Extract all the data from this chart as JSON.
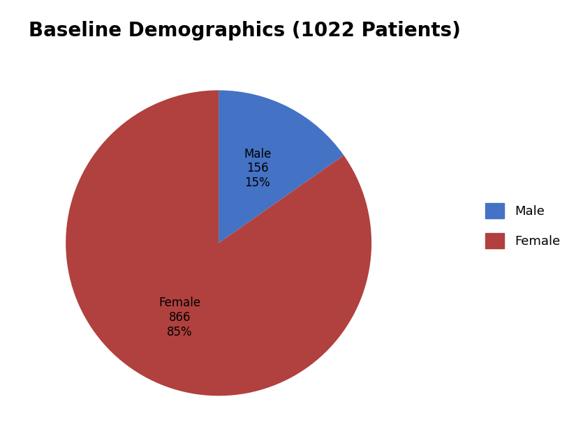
{
  "title": "Baseline Demographics (1022 Patients)",
  "labels": [
    "Male",
    "Female"
  ],
  "values": [
    156,
    866
  ],
  "percentages": [
    15,
    85
  ],
  "colors": [
    "#4472C4",
    "#B0413E"
  ],
  "legend_labels": [
    "Male",
    "Female"
  ],
  "title_fontsize": 20,
  "label_fontsize": 12,
  "legend_fontsize": 13,
  "startangle": 90,
  "background_color": "#ffffff"
}
